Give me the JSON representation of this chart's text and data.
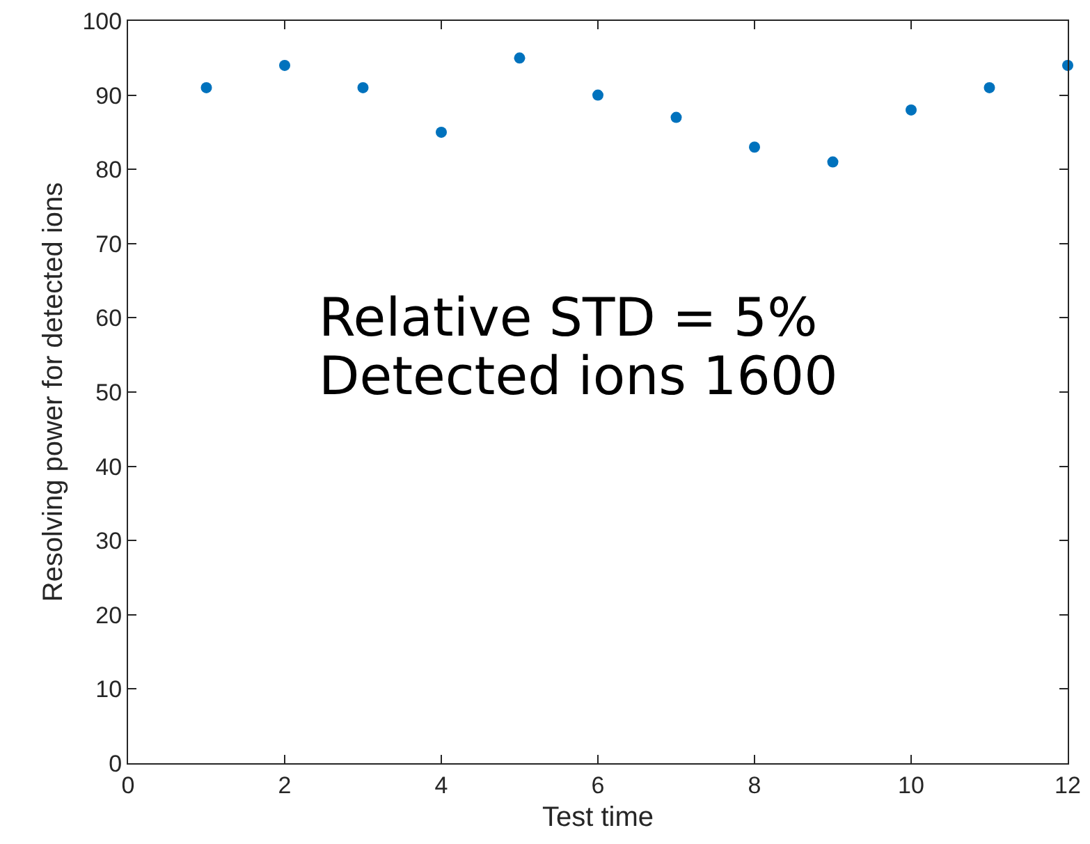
{
  "chart_data": {
    "type": "scatter",
    "xlabel": "Test time",
    "ylabel": "Resolving power for detected ions",
    "x": [
      1,
      2,
      3,
      4,
      5,
      6,
      7,
      8,
      9,
      10,
      11,
      12
    ],
    "series": [
      {
        "color": "#0072bd",
        "values": [
          91,
          94,
          91,
          85,
          95,
          90,
          87,
          83,
          81,
          88,
          91,
          94
        ]
      }
    ],
    "xlim": [
      0,
      12
    ],
    "xticks": [
      0,
      2,
      4,
      6,
      8,
      10,
      12
    ],
    "ylim": [
      0,
      100
    ],
    "yticks": [
      0,
      10,
      20,
      30,
      40,
      50,
      60,
      70,
      80,
      90,
      100
    ],
    "grid": false,
    "marker": "circle",
    "annotations": [
      "Relative STD = 5%",
      "Detected ions 1600"
    ]
  }
}
